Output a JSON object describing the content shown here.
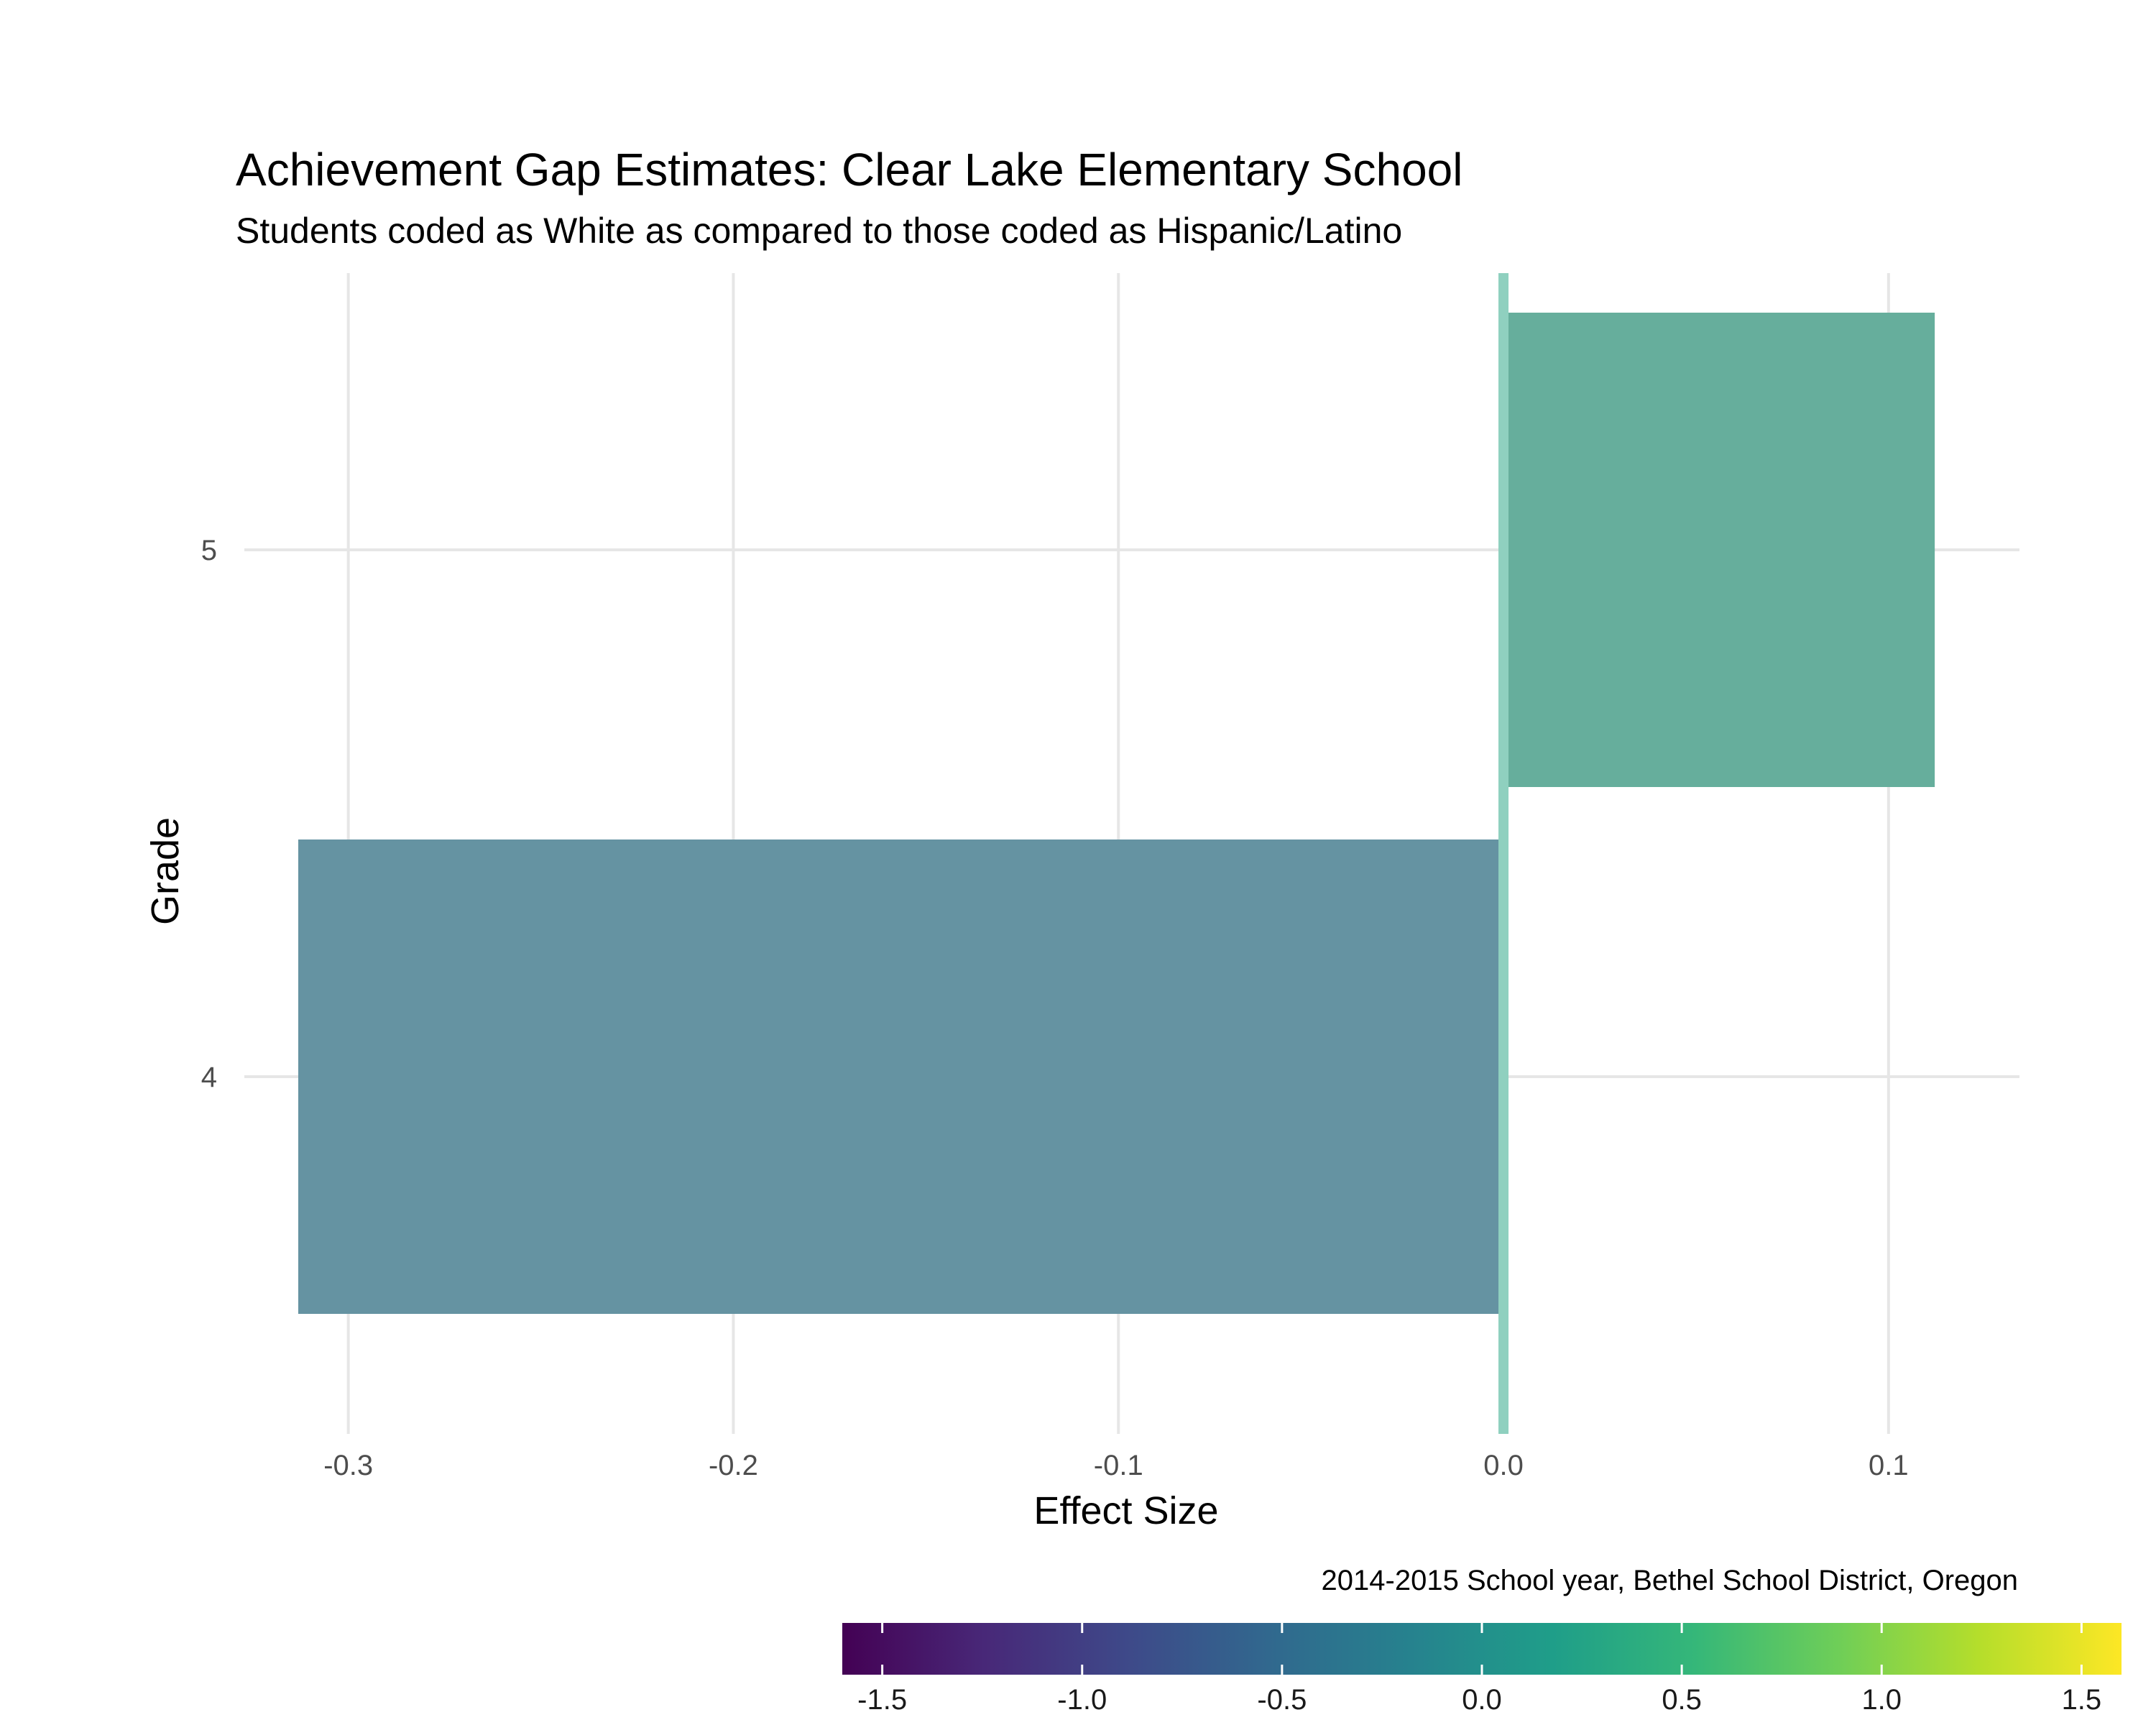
{
  "chart_data": {
    "type": "bar",
    "orientation": "horizontal",
    "title": "Achievement Gap Estimates: Clear Lake Elementary School",
    "subtitle": "Students coded as White as compared to those coded as Hispanic/Latino",
    "xlabel": "Effect Size",
    "ylabel": "Grade",
    "caption": "2014-2015 School year, Bethel School District, Oregon",
    "categories": [
      "4",
      "5"
    ],
    "values": [
      -0.313,
      0.112
    ],
    "x_ticks": [
      -0.3,
      -0.2,
      -0.1,
      0.0,
      0.1
    ],
    "x_tick_labels": [
      "-0.3",
      "-0.2",
      "-0.1",
      "0.0",
      "0.1"
    ],
    "xlim": [
      -0.327,
      0.134
    ],
    "grid": true,
    "reference_line": {
      "x": 0.0,
      "color": "#8fd0bf"
    },
    "colorscale": {
      "name": "viridis",
      "range": [
        -1.6,
        1.6
      ],
      "ticks": [
        -1.5,
        -1.0,
        -0.5,
        0.0,
        0.5,
        1.0,
        1.5
      ],
      "tick_labels": [
        "-1.5",
        "-1.0",
        "-0.5",
        "0.0",
        "0.5",
        "1.0",
        "1.5"
      ],
      "stops": [
        "#440154",
        "#482878",
        "#3e4989",
        "#31688e",
        "#26828e",
        "#1f9e89",
        "#35b779",
        "#6ece58",
        "#b5de2b",
        "#fde725"
      ]
    },
    "bar_colors": [
      "#6593a2",
      "#66ae9c"
    ],
    "legend_position": "bottom"
  }
}
